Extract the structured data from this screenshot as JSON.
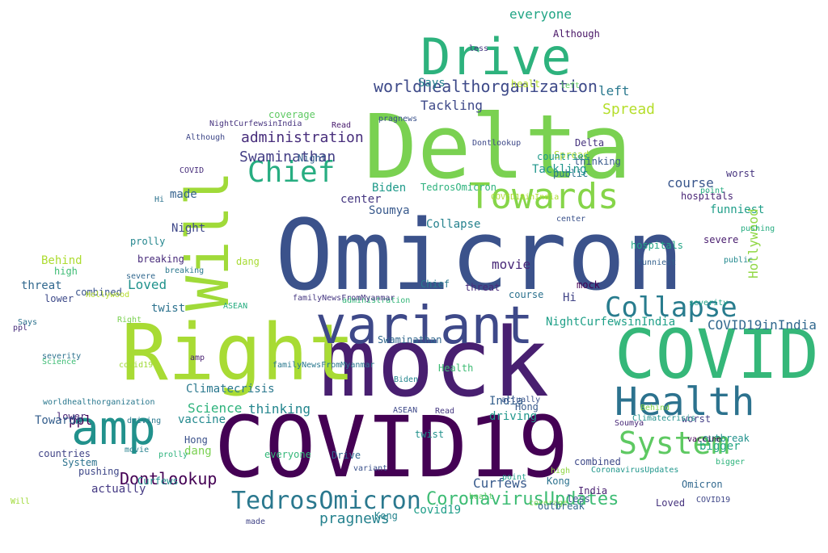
{
  "wordcloud": {
    "words": [
      {
        "text": "Omicron",
        "color": "#3b528b"
      },
      {
        "text": "mock",
        "color": "#481f70"
      },
      {
        "text": "Delta",
        "color": "#7ad151"
      },
      {
        "text": "Right",
        "color": "#a8db34"
      },
      {
        "text": "COVID",
        "color": "#35b779"
      },
      {
        "text": "COVID19",
        "color": "#440154"
      },
      {
        "text": "Drive",
        "color": "#2db27d"
      },
      {
        "text": "Will",
        "color": "#a0da39"
      },
      {
        "text": "variant",
        "color": "#3e4989"
      },
      {
        "text": "amp",
        "color": "#21918c"
      },
      {
        "text": "Towards",
        "color": "#86d549"
      },
      {
        "text": "Health",
        "color": "#2c728e"
      },
      {
        "text": "Collapse",
        "color": "#287c8e"
      },
      {
        "text": "System",
        "color": "#5ec962"
      },
      {
        "text": "Chief",
        "color": "#27ad81"
      },
      {
        "text": "TedrosOmicron",
        "color": "#2a788e"
      },
      {
        "text": "CoronavirusUpdates",
        "color": "#3dbc74"
      },
      {
        "text": "worldhealthorganization",
        "color": "#3e4a89"
      },
      {
        "text": "administration",
        "color": "#472d7b"
      },
      {
        "text": "Swaminathan",
        "color": "#433e85"
      },
      {
        "text": "Climatecrisis",
        "color": "#2a788e"
      },
      {
        "text": "pragnews",
        "color": "#26828e"
      },
      {
        "text": "Spread",
        "color": "#b5de2b"
      },
      {
        "text": "Dontlookup",
        "color": "#440154"
      },
      {
        "text": "everyone",
        "color": "#21a585"
      },
      {
        "text": "Curfews",
        "color": "#375a8c"
      },
      {
        "text": "NightCurfewsinIndia",
        "color": "#1fa088"
      },
      {
        "text": "COVID19inIndia",
        "color": "#31688e"
      },
      {
        "text": "Tackling",
        "color": "#3e4989"
      },
      {
        "text": "Says",
        "color": "#26828e"
      },
      {
        "text": "left",
        "color": "#2a788e"
      },
      {
        "text": "funniest",
        "color": "#1f9e89"
      },
      {
        "text": "course",
        "color": "#39568c"
      },
      {
        "text": "hospitals",
        "color": "#482475"
      },
      {
        "text": "thinking",
        "color": "#24868e"
      },
      {
        "text": "Science",
        "color": "#2eb37c"
      },
      {
        "text": "vaccine",
        "color": "#23898e"
      },
      {
        "text": "India",
        "color": "#35608d"
      },
      {
        "text": "driving",
        "color": "#1f968b"
      },
      {
        "text": "ppl",
        "color": "#440154"
      },
      {
        "text": "actually",
        "color": "#443983"
      },
      {
        "text": "countries",
        "color": "#414487"
      },
      {
        "text": "pushing",
        "color": "#3f4788"
      },
      {
        "text": "threat",
        "color": "#31688e"
      },
      {
        "text": "Loved",
        "color": "#20928c"
      },
      {
        "text": "twist",
        "color": "#2c728e"
      },
      {
        "text": "Behind",
        "color": "#addc30"
      },
      {
        "text": "high",
        "color": "#3dbc74"
      },
      {
        "text": "combined",
        "color": "#3a548c"
      },
      {
        "text": "made",
        "color": "#34618d"
      },
      {
        "text": "Night",
        "color": "#3f4889"
      },
      {
        "text": "Biden",
        "color": "#1f9a8a"
      },
      {
        "text": "center",
        "color": "#453781"
      },
      {
        "text": "Soumya",
        "color": "#38598c"
      },
      {
        "text": "covid19",
        "color": "#1f9e89"
      },
      {
        "text": "movie",
        "color": "#482878"
      },
      {
        "text": "breaking",
        "color": "#472a7a"
      },
      {
        "text": "lower",
        "color": "#482576"
      },
      {
        "text": "bigger",
        "color": "#22a884"
      },
      {
        "text": "Hollywood",
        "color": "#90d743"
      },
      {
        "text": "worst",
        "color": "#46337e"
      },
      {
        "text": "public",
        "color": "#2c728e"
      },
      {
        "text": "Kong",
        "color": "#25848e"
      },
      {
        "text": "dang",
        "color": "#7ad151"
      },
      {
        "text": "Hong",
        "color": "#3b528b"
      },
      {
        "text": "outbreak",
        "color": "#21918c"
      },
      {
        "text": "severity",
        "color": "#2c728e"
      },
      {
        "text": "prolly",
        "color": "#24868e"
      },
      {
        "text": "less",
        "color": "#3a548c"
      },
      {
        "text": "Although",
        "color": "#471365"
      },
      {
        "text": "coverage",
        "color": "#5ec962"
      },
      {
        "text": "healt",
        "color": "#b5de2b"
      },
      {
        "text": "Read",
        "color": "#453781"
      },
      {
        "text": "familyNewsFromMyanmar",
        "color": "#2a788e"
      },
      {
        "text": "ASEAN",
        "color": "#3e4989"
      },
      {
        "text": "Hi",
        "color": "#414487"
      },
      {
        "text": "point",
        "color": "#27ad81"
      },
      {
        "text": "severe",
        "color": "#481c6e"
      },
      {
        "text": "mock",
        "color": "#440154"
      },
      {
        "text": "Delta",
        "color": "#46337e"
      },
      {
        "text": "Omicron",
        "color": "#31688e"
      },
      {
        "text": "COVID19",
        "color": "#3f4788"
      },
      {
        "text": "Towards",
        "color": "#355f8d"
      },
      {
        "text": "Health",
        "color": "#3dbc74"
      },
      {
        "text": "Chief",
        "color": "#2a788e"
      },
      {
        "text": "Drive",
        "color": "#31688e"
      },
      {
        "text": "amp",
        "color": "#481f70"
      },
      {
        "text": "System",
        "color": "#2c728e"
      },
      {
        "text": "Will",
        "color": "#a0da39"
      },
      {
        "text": "Right",
        "color": "#7ad151"
      },
      {
        "text": "variant",
        "color": "#3b528b"
      },
      {
        "text": "Collapse",
        "color": "#26828e"
      },
      {
        "text": "COVID",
        "color": "#472d7b"
      },
      {
        "text": "Swaminathan",
        "color": "#31688e"
      },
      {
        "text": "TedrosOmicron",
        "color": "#2db27d"
      },
      {
        "text": "Curfews",
        "color": "#21918c"
      },
      {
        "text": "Spread",
        "color": "#addc30"
      },
      {
        "text": "Says",
        "color": "#2c728e"
      },
      {
        "text": "Tackling",
        "color": "#1f968b"
      },
      {
        "text": "everyone",
        "color": "#35b779"
      },
      {
        "text": "thinking",
        "color": "#38598c"
      },
      {
        "text": "left",
        "color": "#5ec962"
      },
      {
        "text": "driving",
        "color": "#2a788e"
      },
      {
        "text": "India",
        "color": "#481f70"
      },
      {
        "text": "Kong",
        "color": "#2c728e"
      },
      {
        "text": "pushing",
        "color": "#27ad81"
      },
      {
        "text": "combined",
        "color": "#3e4989"
      },
      {
        "text": "movie",
        "color": "#26828e"
      },
      {
        "text": "twist",
        "color": "#21918c"
      },
      {
        "text": "Loved",
        "color": "#46337e"
      },
      {
        "text": "prolly",
        "color": "#2db27d"
      },
      {
        "text": "point",
        "color": "#1f9e89"
      },
      {
        "text": "high",
        "color": "#90d743"
      },
      {
        "text": "less",
        "color": "#453781"
      },
      {
        "text": "coverage",
        "color": "#7ad151"
      },
      {
        "text": "Hong",
        "color": "#375a8c"
      },
      {
        "text": "outbreak",
        "color": "#31688e"
      },
      {
        "text": "lower",
        "color": "#3e4a89"
      },
      {
        "text": "dang",
        "color": "#a8db34"
      },
      {
        "text": "Behind",
        "color": "#86d549"
      },
      {
        "text": "Science",
        "color": "#3dbc74"
      },
      {
        "text": "threat",
        "color": "#472a7a"
      },
      {
        "text": "bigger",
        "color": "#2eb37c"
      },
      {
        "text": "Hollywood",
        "color": "#b5de2b"
      },
      {
        "text": "public",
        "color": "#23898e"
      },
      {
        "text": "center",
        "color": "#3b528b"
      },
      {
        "text": "hospitals",
        "color": "#21a585"
      },
      {
        "text": "Biden",
        "color": "#24868e"
      },
      {
        "text": "worst",
        "color": "#433e85"
      },
      {
        "text": "course",
        "color": "#2c728e"
      },
      {
        "text": "actually",
        "color": "#3a548c"
      },
      {
        "text": "vaccine",
        "color": "#440154"
      },
      {
        "text": "made",
        "color": "#414487"
      },
      {
        "text": "Night",
        "color": "#35608d"
      },
      {
        "text": "Although",
        "color": "#3f4889"
      },
      {
        "text": "severity",
        "color": "#1fa088"
      },
      {
        "text": "Read",
        "color": "#481c6e"
      },
      {
        "text": "healt",
        "color": "#5ec962"
      },
      {
        "text": "breaking",
        "color": "#2a788e"
      },
      {
        "text": "Soumya",
        "color": "#482878"
      },
      {
        "text": "Dontlookup",
        "color": "#3e4989"
      },
      {
        "text": "countries",
        "color": "#1f9a8a"
      },
      {
        "text": "funniest",
        "color": "#34618d"
      },
      {
        "text": "ASEAN",
        "color": "#27ad81"
      },
      {
        "text": "Hi",
        "color": "#2c728e"
      },
      {
        "text": "ppl",
        "color": "#472d7b"
      },
      {
        "text": "covid19",
        "color": "#a0da39"
      },
      {
        "text": "severe",
        "color": "#31688e"
      },
      {
        "text": "Climatecrisis",
        "color": "#21918c"
      },
      {
        "text": "pragnews",
        "color": "#3b528b"
      },
      {
        "text": "administration",
        "color": "#35b779"
      },
      {
        "text": "CoronavirusUpdates",
        "color": "#1f968b"
      },
      {
        "text": "COVID19inIndia",
        "color": "#addc30"
      },
      {
        "text": "NightCurfewsinIndia",
        "color": "#46337e"
      },
      {
        "text": "worldhealthorganization",
        "color": "#2a788e"
      },
      {
        "text": "familyNewsFromMyanmar",
        "color": "#453781"
      }
    ]
  }
}
